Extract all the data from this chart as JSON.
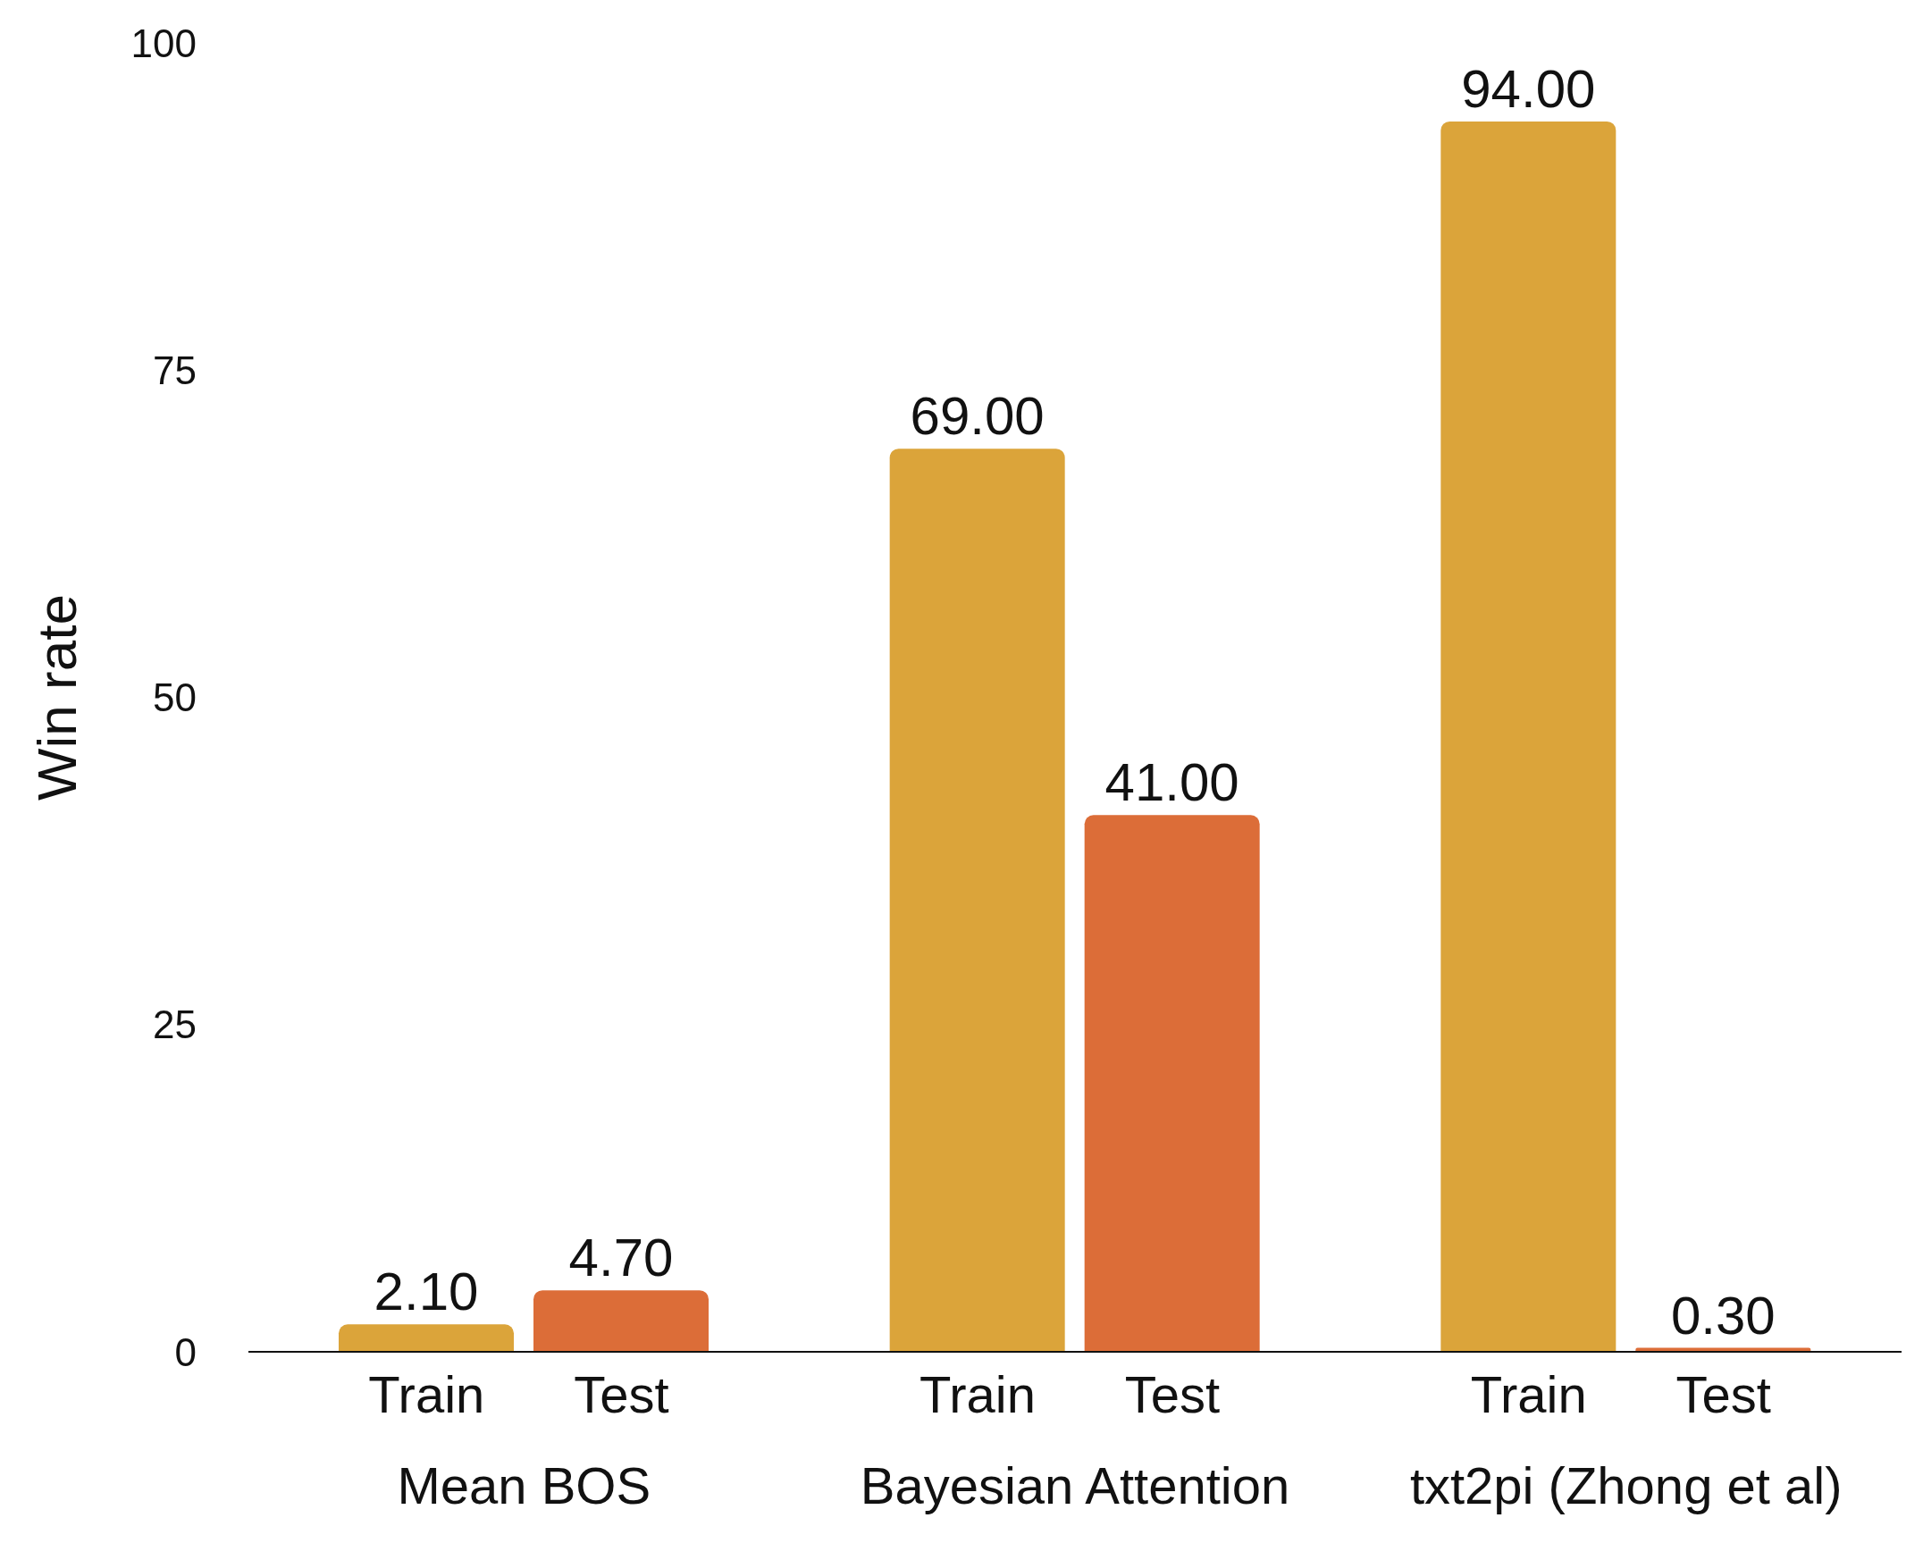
{
  "chart_data": {
    "type": "bar",
    "ylabel": "Win rate",
    "categories": [
      "Mean BOS",
      "Bayesian Attention",
      "txt2pi (Zhong et al)"
    ],
    "series": [
      {
        "name": "Train",
        "color": "#dba43a",
        "values": [
          2.1,
          69,
          94
        ],
        "value_labels": [
          "2.10",
          "69.00",
          "94.00"
        ]
      },
      {
        "name": "Test",
        "color": "#dc6d38",
        "values": [
          4.7,
          41,
          0.3
        ],
        "value_labels": [
          "4.70",
          "41.00",
          "0.30"
        ]
      }
    ],
    "ylim": [
      0,
      100
    ],
    "yticks": [
      0,
      25,
      50,
      75,
      100
    ],
    "grid": false,
    "legend": false
  }
}
